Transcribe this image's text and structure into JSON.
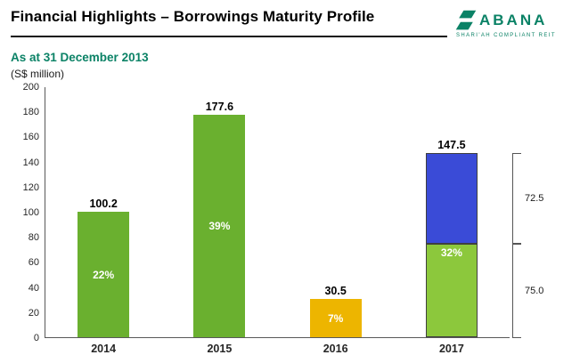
{
  "header": {
    "title": "Financial Highlights – Borrowings Maturity Profile",
    "logo_text": "ABANA",
    "logo_tagline": "SHARI'AH COMPLIANT REIT"
  },
  "subtitle": "As at 31 December 2013",
  "unit_label": "(S$ million)",
  "colors": {
    "accent_teal": "#0B8266",
    "green": "#6AB02F",
    "light_green": "#8CC83C",
    "gold": "#EDB500",
    "blue": "#3A4BD7",
    "axis": "#595959"
  },
  "chart_data": {
    "type": "bar",
    "title": "Borrowings Maturity Profile",
    "subtitle": "As at 31 December 2013",
    "ylabel": "(S$ million)",
    "xlabel": "",
    "ylim": [
      0,
      200
    ],
    "grid": false,
    "legend": "none",
    "yticks": [
      "0",
      "20",
      "40",
      "60",
      "80",
      "100",
      "120",
      "140",
      "160",
      "180",
      "200"
    ],
    "categories": [
      "2014",
      "2015",
      "2016",
      "2017"
    ],
    "bars": [
      {
        "category": "2014",
        "total": 100.2,
        "total_label": "100.2",
        "segments": [
          {
            "value": 100.2,
            "label": "22%",
            "color": "#6AB02F"
          }
        ]
      },
      {
        "category": "2015",
        "total": 177.6,
        "total_label": "177.6",
        "segments": [
          {
            "value": 177.6,
            "label": "39%",
            "color": "#6AB02F"
          }
        ]
      },
      {
        "category": "2016",
        "total": 30.5,
        "total_label": "30.5",
        "segments": [
          {
            "value": 30.5,
            "label": "7%",
            "color": "#EDB500"
          }
        ]
      },
      {
        "category": "2017",
        "total": 147.5,
        "total_label": "147.5",
        "segments": [
          {
            "value": 75.0,
            "label": "32%",
            "color": "#8CC83C"
          },
          {
            "value": 72.5,
            "label": "",
            "color": "#3A4BD7"
          }
        ],
        "annotations": [
          {
            "label": "72.5",
            "value": 72.5
          },
          {
            "label": "75.0",
            "value": 75.0
          }
        ]
      }
    ]
  }
}
